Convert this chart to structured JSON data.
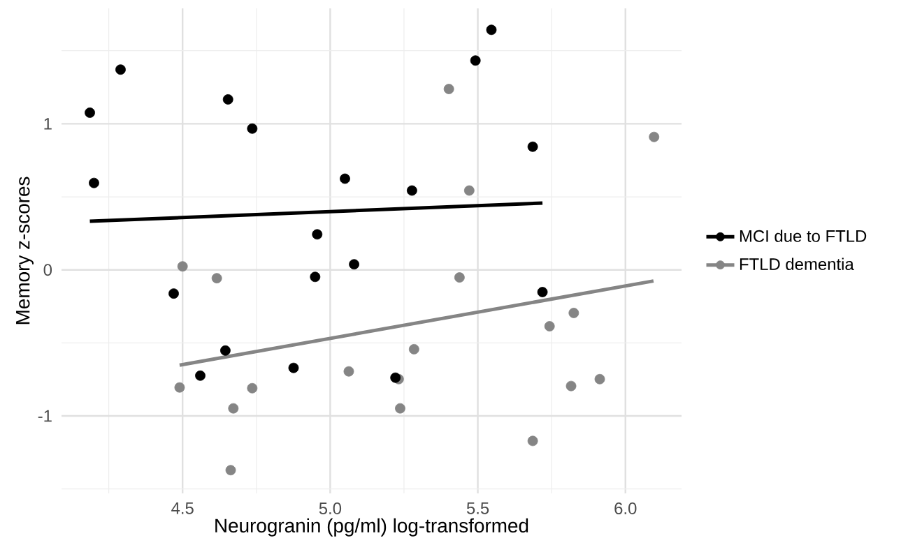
{
  "chart_data": {
    "type": "scatter",
    "xlabel": "Neurogranin (pg/ml) log-transformed",
    "ylabel": "Memory z-scores",
    "xlim": [
      4.09,
      6.19
    ],
    "ylim": [
      -1.53,
      1.79
    ],
    "xticks": [
      4.5,
      {
        "value": 5,
        "label": "5.0"
      },
      5.5,
      {
        "value": 6,
        "label": "6.0"
      }
    ],
    "yticks": [
      -1,
      0,
      1
    ],
    "grid": true,
    "legend": "right",
    "series": [
      {
        "name": "MCI due to FTLD",
        "marker": "circle",
        "color": "#000000",
        "x": [
          4.186,
          4.2,
          4.29,
          4.47,
          4.56,
          4.645,
          4.654,
          4.736,
          4.876,
          4.949,
          4.956,
          5.05,
          5.081,
          5.221,
          5.277,
          5.492,
          5.546,
          5.686,
          5.719
        ],
        "values": [
          1.076,
          0.595,
          1.371,
          -0.162,
          -0.724,
          -0.552,
          1.167,
          0.967,
          -0.671,
          -0.048,
          0.243,
          0.624,
          0.038,
          -0.738,
          0.543,
          1.433,
          1.643,
          0.843,
          -0.152
        ]
      },
      {
        "name": "FTLD dementia",
        "marker": "circle",
        "color": "#858585",
        "x": [
          4.49,
          4.5,
          4.616,
          4.663,
          4.672,
          4.736,
          5.063,
          5.232,
          5.237,
          5.284,
          5.402,
          5.438,
          5.471,
          5.686,
          5.743,
          5.816,
          5.825,
          5.913,
          6.097
        ],
        "values": [
          -0.805,
          0.024,
          -0.057,
          -1.371,
          -0.948,
          -0.81,
          -0.695,
          -0.748,
          -0.948,
          -0.543,
          1.238,
          -0.052,
          0.543,
          -1.171,
          -0.386,
          -0.795,
          -0.295,
          -0.748,
          0.91
        ]
      },
      {
        "type": "line",
        "marker": "none",
        "color": "#000000",
        "x": [
          4.186,
          5.719
        ],
        "values": [
          0.333,
          0.457
        ]
      },
      {
        "type": "line",
        "marker": "none",
        "color": "#858585",
        "x": [
          4.49,
          6.095
        ],
        "values": [
          -0.652,
          -0.076
        ]
      }
    ]
  }
}
